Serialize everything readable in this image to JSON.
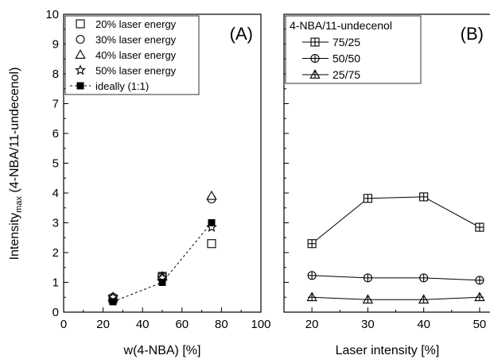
{
  "chart_data": [
    {
      "type": "scatter",
      "panel_label": "(A)",
      "xlabel": "w(4-NBA) [%]",
      "ylabel_main": "Intensity",
      "ylabel_sub": "max",
      "ylabel_rest": " (4-NBA/11-undecenol)",
      "xlim": [
        0,
        100
      ],
      "ylim": [
        0,
        10
      ],
      "x_ticks": [
        "0",
        "20",
        "40",
        "60",
        "80",
        "100"
      ],
      "y_ticks": [
        "0",
        "1",
        "2",
        "3",
        "4",
        "5",
        "6",
        "7",
        "8",
        "9",
        "10"
      ],
      "legend_position": "top-left",
      "series": [
        {
          "name": "20% laser energy",
          "marker": "square-open",
          "x": [
            25,
            50,
            75
          ],
          "y": [
            0.45,
            1.2,
            2.3
          ]
        },
        {
          "name": "30% laser energy",
          "marker": "circle-open",
          "x": [
            25,
            50,
            75
          ],
          "y": [
            0.5,
            1.2,
            3.8
          ]
        },
        {
          "name": "40% laser energy",
          "marker": "triangle-open",
          "x": [
            25,
            50,
            75
          ],
          "y": [
            0.5,
            1.2,
            3.9
          ]
        },
        {
          "name": "50% laser energy",
          "marker": "star-open",
          "x": [
            25,
            50,
            75
          ],
          "y": [
            0.5,
            1.15,
            2.85
          ]
        },
        {
          "name": "ideally (1:1)",
          "marker": "square-filled",
          "line": "dashed",
          "x": [
            25,
            50,
            75
          ],
          "y": [
            0.35,
            1.0,
            3.0
          ]
        }
      ]
    },
    {
      "type": "line",
      "panel_label": "(B)",
      "xlabel": "Laser intensity [%]",
      "xlim": [
        15,
        52
      ],
      "ylim": [
        0,
        10
      ],
      "x_ticks": [
        "20",
        "30",
        "40",
        "50"
      ],
      "legend_title": "4-NBA/11-undecenol",
      "legend_position": "top-left",
      "series": [
        {
          "name": "75/25",
          "marker": "square-plus",
          "x": [
            20,
            30,
            40,
            50
          ],
          "y": [
            2.3,
            3.82,
            3.87,
            2.85
          ]
        },
        {
          "name": "50/50",
          "marker": "circle-plus",
          "x": [
            20,
            30,
            40,
            50
          ],
          "y": [
            1.23,
            1.15,
            1.15,
            1.07
          ]
        },
        {
          "name": "25/75",
          "marker": "triangle-plus",
          "x": [
            20,
            30,
            40,
            50
          ],
          "y": [
            0.5,
            0.42,
            0.42,
            0.5
          ]
        }
      ]
    }
  ]
}
